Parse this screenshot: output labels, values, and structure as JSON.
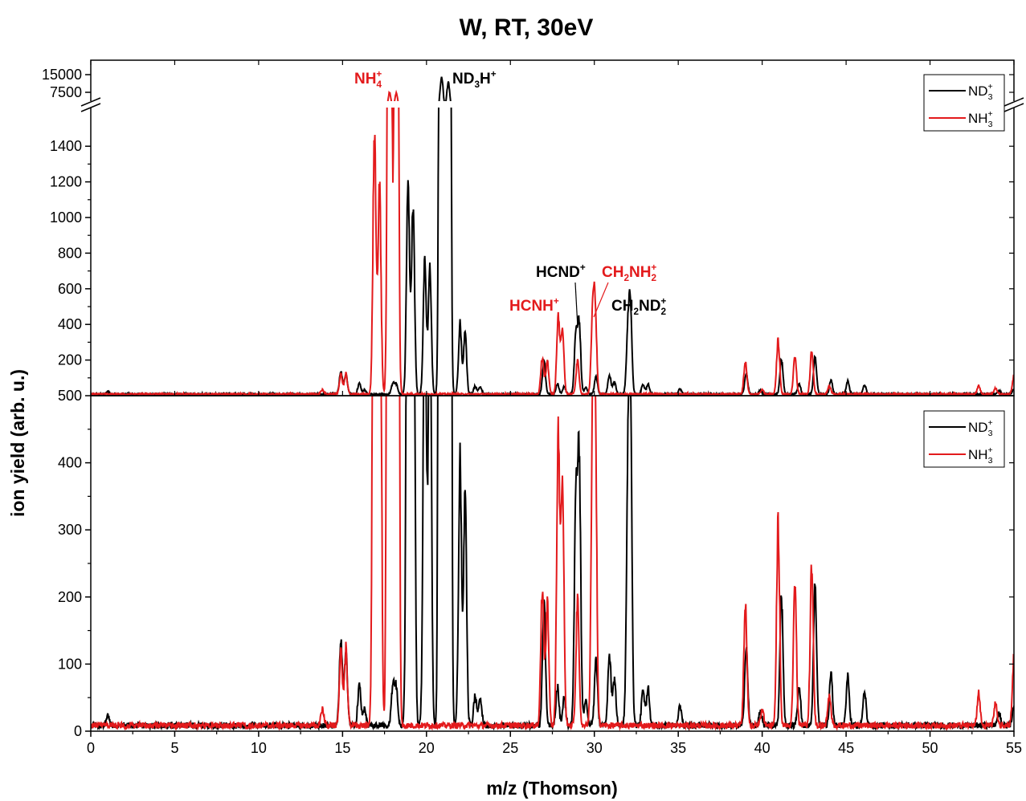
{
  "chart_data": {
    "type": "line",
    "title": "W, RT, 30eV",
    "xlabel": "m/z (Thomson)",
    "ylabel": "ion yield (arb. u.)",
    "xlim": [
      0,
      55
    ],
    "x_ticks": [
      "0",
      "5",
      "10",
      "15",
      "20",
      "25",
      "30",
      "35",
      "40",
      "45",
      "50",
      "55"
    ],
    "grid": false,
    "colors": {
      "nd3": "#000000",
      "nh3": "#e31a1c"
    },
    "series": [
      {
        "name": "ND3+",
        "legend": {
          "base": "ND",
          "sub": "3",
          "sup": "+"
        },
        "color": "#000000",
        "peaks": [
          [
            1,
            15
          ],
          [
            14.9,
            135
          ],
          [
            15.2,
            110
          ],
          [
            16,
            65
          ],
          [
            16.3,
            25
          ],
          [
            18,
            60
          ],
          [
            18.2,
            55
          ],
          [
            18.9,
            1250
          ],
          [
            19.2,
            1100
          ],
          [
            19.9,
            780
          ],
          [
            20.2,
            700
          ],
          [
            20.9,
            15000
          ],
          [
            21.3,
            12000
          ],
          [
            22,
            400
          ],
          [
            22.3,
            350
          ],
          [
            22.9,
            45
          ],
          [
            23.2,
            45
          ],
          [
            27,
            185
          ],
          [
            27.8,
            60
          ],
          [
            28.2,
            45
          ],
          [
            28.9,
            340
          ],
          [
            29.1,
            395
          ],
          [
            29.5,
            40
          ],
          [
            30.1,
            100
          ],
          [
            30.9,
            110
          ],
          [
            31.2,
            70
          ],
          [
            32.0,
            350
          ],
          [
            32.15,
            445
          ],
          [
            32.9,
            55
          ],
          [
            33.2,
            55
          ],
          [
            35.1,
            30
          ],
          [
            39.05,
            120
          ],
          [
            39.9,
            22
          ],
          [
            41.15,
            195
          ],
          [
            42.2,
            60
          ],
          [
            43.15,
            210
          ],
          [
            44.1,
            80
          ],
          [
            45.1,
            75
          ],
          [
            46.1,
            55
          ],
          [
            54.1,
            20
          ],
          [
            55,
            30
          ]
        ]
      },
      {
        "name": "NH3+",
        "legend": {
          "base": "NH",
          "sub": "3",
          "sup": "+"
        },
        "color": "#e31a1c",
        "peaks": [
          [
            13.8,
            25
          ],
          [
            14.9,
            110
          ],
          [
            15.2,
            115
          ],
          [
            16.9,
            1500
          ],
          [
            17.2,
            1180
          ],
          [
            17.8,
            7500
          ],
          [
            18.2,
            7200
          ],
          [
            26.9,
            210
          ],
          [
            27.2,
            185
          ],
          [
            27.85,
            440
          ],
          [
            28.1,
            380
          ],
          [
            29.0,
            195
          ],
          [
            29.9,
            440
          ],
          [
            30.05,
            455
          ],
          [
            39.0,
            185
          ],
          [
            40.0,
            25
          ],
          [
            40.95,
            310
          ],
          [
            41.95,
            215
          ],
          [
            42.95,
            245
          ],
          [
            44.0,
            45
          ],
          [
            52.9,
            48
          ],
          [
            53.9,
            32
          ],
          [
            55,
            105
          ]
        ]
      }
    ],
    "panels": [
      {
        "id": "top",
        "scale": "broken",
        "y_ticks_lower": [
          "200",
          "400",
          "600",
          "800",
          "1000",
          "1200",
          "1400"
        ],
        "y_ticks_upper": [
          "7500",
          "15000"
        ],
        "y_bottom_label": "500",
        "legend_position": "top-right"
      },
      {
        "id": "bottom",
        "scale": "linear",
        "ylim": [
          0,
          500
        ],
        "y_ticks": [
          "0",
          "100",
          "200",
          "300",
          "400"
        ],
        "legend_position": "top-right"
      }
    ],
    "annotations": [
      {
        "base": "NH",
        "sub": "4",
        "sup": "+",
        "color": "#e31a1c"
      },
      {
        "base": "ND",
        "sub": "3",
        "mid": "H",
        "sup": "+",
        "color": "#000000"
      },
      {
        "base": "HCND",
        "sup": "+",
        "color": "#000000"
      },
      {
        "base": "CH",
        "sub": "2",
        "mid": "NH",
        "sub2": "2",
        "sup": "+",
        "color": "#e31a1c"
      },
      {
        "base": "HCNH",
        "sup": "+",
        "color": "#e31a1c"
      },
      {
        "base": "CH",
        "sub": "2",
        "mid": "ND",
        "sub2": "2",
        "sup": "+",
        "color": "#000000"
      }
    ]
  }
}
